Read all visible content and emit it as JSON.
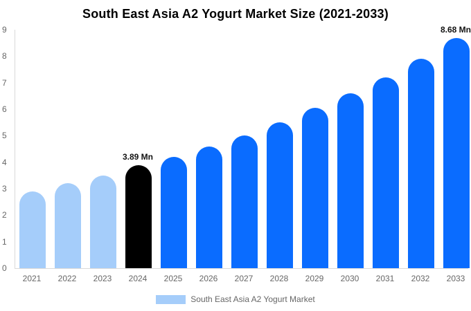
{
  "chart_data": {
    "type": "bar",
    "title": "South East Asia A2 Yogurt Market Size (2021-2033)",
    "categories": [
      "2021",
      "2022",
      "2023",
      "2024",
      "2025",
      "2026",
      "2027",
      "2028",
      "2029",
      "2030",
      "2031",
      "2032",
      "2033"
    ],
    "values": [
      2.9,
      3.2,
      3.5,
      3.89,
      4.2,
      4.6,
      5.0,
      5.5,
      6.05,
      6.6,
      7.2,
      7.9,
      8.68
    ],
    "unit": "Mn",
    "bar_colors": [
      "#a5cdfa",
      "#a5cdfa",
      "#a5cdfa",
      "#000000",
      "#0a6cff",
      "#0a6cff",
      "#0a6cff",
      "#0a6cff",
      "#0a6cff",
      "#0a6cff",
      "#0a6cff",
      "#0a6cff",
      "#0a6cff"
    ],
    "annotations": [
      {
        "category": "2024",
        "text": "3.89 Mn"
      },
      {
        "category": "2033",
        "text": "8.68 Mn"
      }
    ],
    "xlabel": "",
    "ylabel": "",
    "ylim": [
      0,
      9
    ],
    "yticks": [
      0,
      1,
      2,
      3,
      4,
      5,
      6,
      7,
      8,
      9
    ],
    "grid": false,
    "legend_position": "bottom",
    "legend": {
      "label": "South East Asia A2 Yogurt Market",
      "swatch_color": "#a5cdfa"
    },
    "colors": {
      "historical_bar": "#a5cdfa",
      "base_year_bar": "#000000",
      "forecast_bar": "#0a6cff",
      "axis_line": "#d9d9d9",
      "tick_text": "#666666",
      "title_text": "#000000"
    }
  }
}
